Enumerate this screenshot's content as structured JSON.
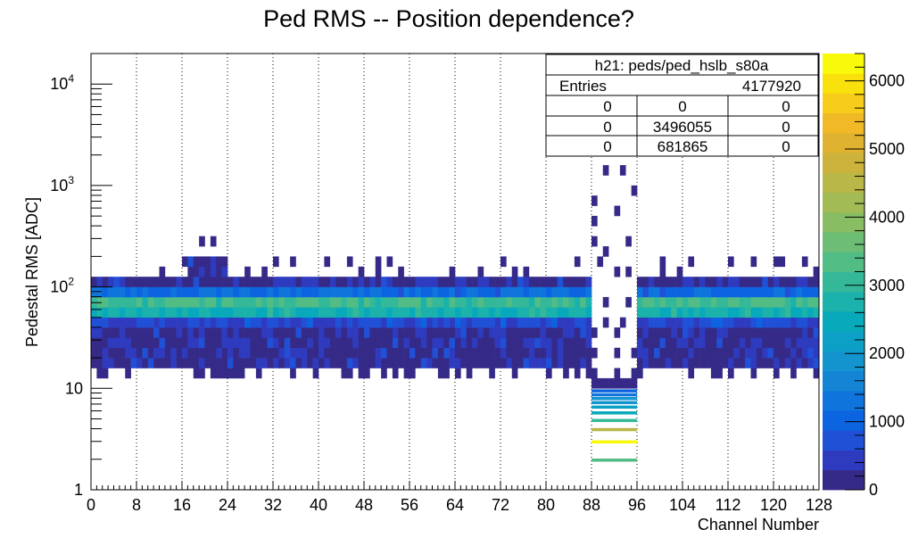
{
  "chart_data": {
    "type": "heatmap",
    "title": "Ped RMS -- Position dependence?",
    "xlabel": "Channel Number",
    "ylabel": "Pedestal RMS [ADC]",
    "xlim": [
      0,
      128
    ],
    "ylim": [
      1,
      20000
    ],
    "yscale": "log",
    "x_ticks": [
      "0",
      "8",
      "16",
      "24",
      "32",
      "40",
      "48",
      "56",
      "64",
      "72",
      "80",
      "88",
      "96",
      "104",
      "112",
      "120",
      "128"
    ],
    "y_ticks": [
      {
        "value": 1,
        "label": "1"
      },
      {
        "value": 10,
        "label": "10"
      },
      {
        "value": 100,
        "base": "10",
        "exp": "2"
      },
      {
        "value": 1000,
        "base": "10",
        "exp": "3"
      },
      {
        "value": 10000,
        "base": "10",
        "exp": "4"
      }
    ],
    "grid": {
      "x": true,
      "y": false
    },
    "colorbar": {
      "min": 0,
      "max": 6400,
      "ticks": [
        "0",
        "1000",
        "2000",
        "3000",
        "4000",
        "5000",
        "6000"
      ],
      "palette": [
        "#352a87",
        "#2e3bbf",
        "#1f50d6",
        "#0d64e0",
        "#0f75dc",
        "#1485d4",
        "#1394cf",
        "#0da0c6",
        "#08a9bb",
        "#1ab2aa",
        "#35b898",
        "#52bc85",
        "#6dbd74",
        "#88bd63",
        "#a2bb55",
        "#b9b747",
        "#cdb23b",
        "#dfb22f",
        "#f0b925",
        "#f8cc1a",
        "#f9e10e",
        "#f9f90b"
      ]
    },
    "stats_box": {
      "name": "h21: peds/ped_hslb_s80a",
      "entries_label": "Entries",
      "entries_value": "4177920",
      "rows": [
        [
          "0",
          "0",
          "0"
        ],
        [
          "0",
          "3496055",
          "0"
        ],
        [
          "0",
          "681865",
          "0"
        ]
      ]
    },
    "summary": {
      "normal_channels_core_band": [
        16,
        125
      ],
      "normal_channels_peak_rms": 65,
      "dead_region_channels": [
        88,
        96
      ],
      "elevated_channels": [
        17,
        24
      ],
      "elevated_channels_upper_rms": 220
    }
  }
}
